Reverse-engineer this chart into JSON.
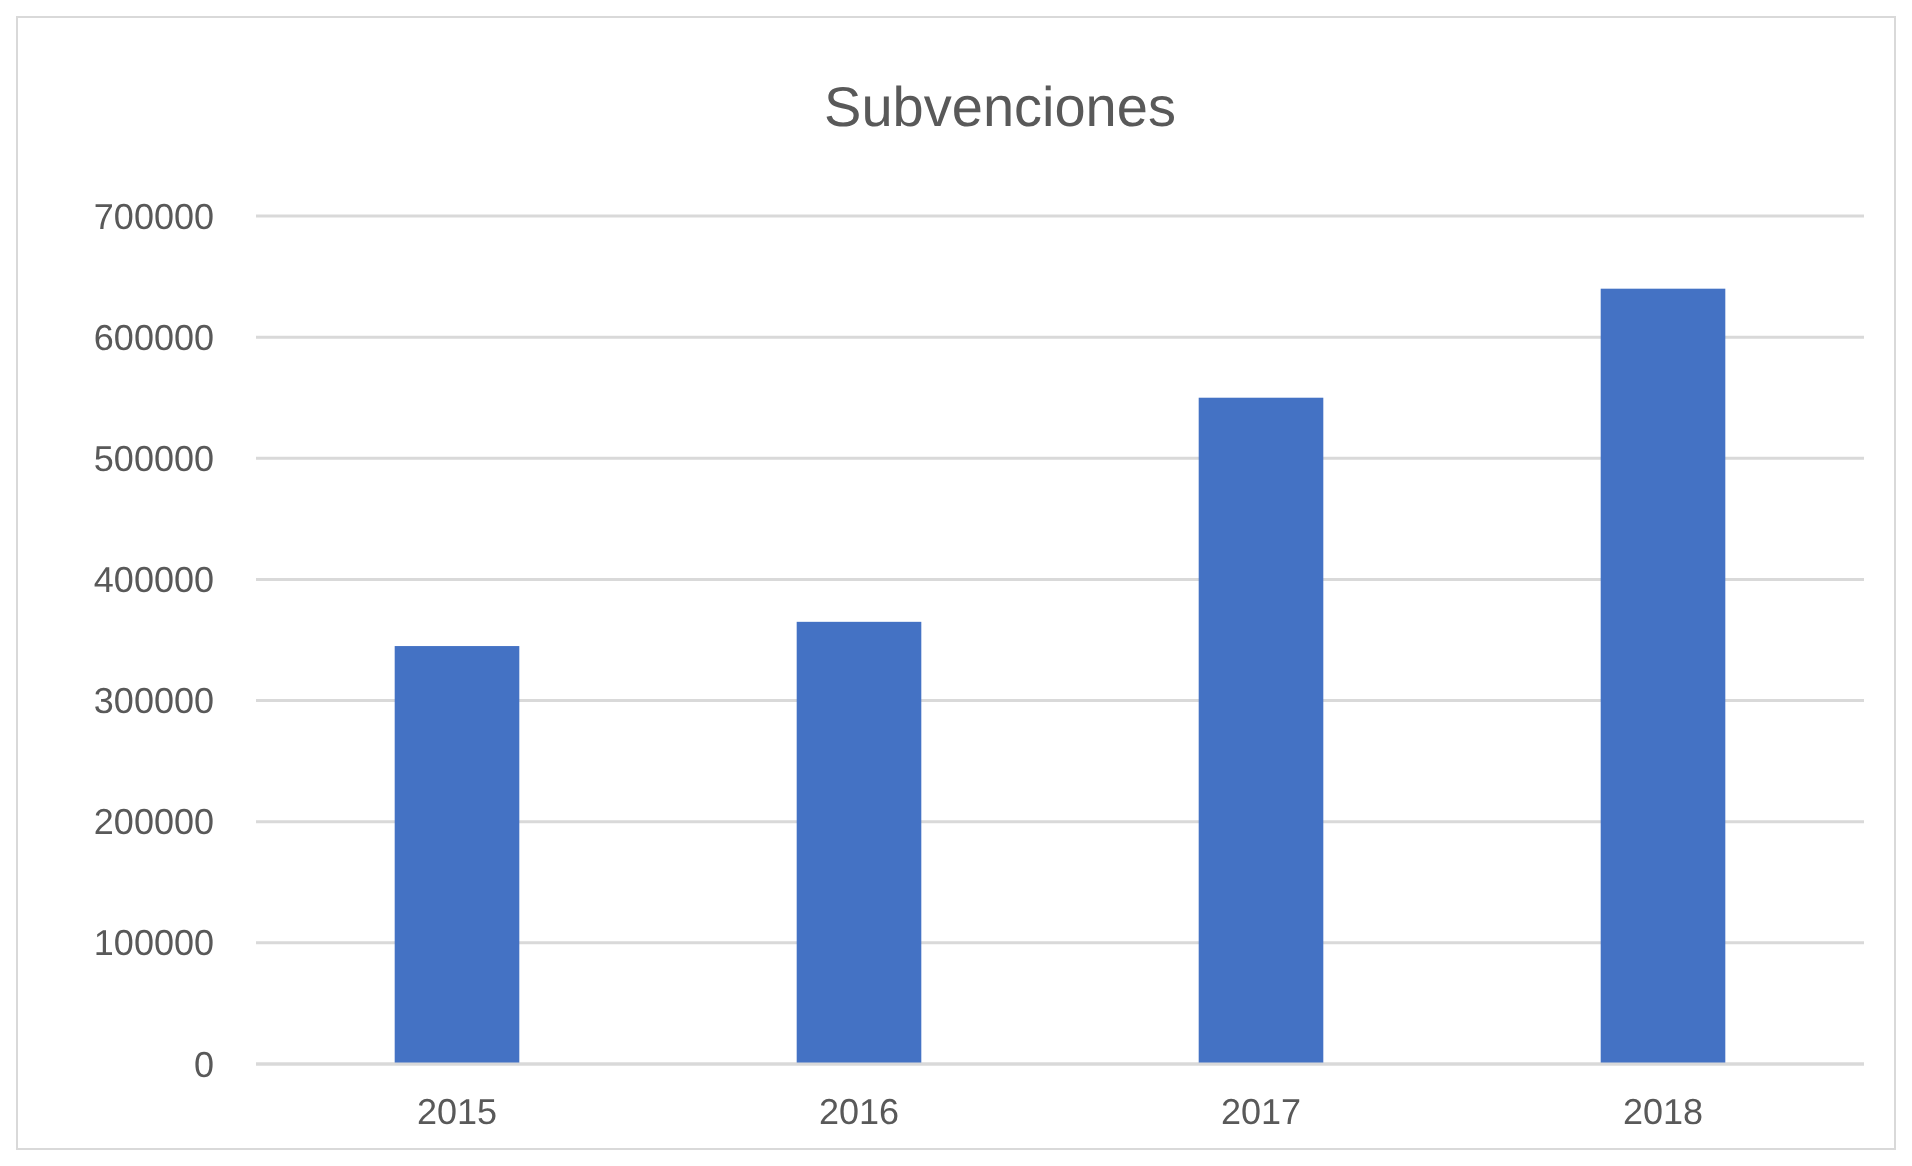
{
  "chart_data": {
    "type": "bar",
    "title": "Subvenciones",
    "categories": [
      "2015",
      "2016",
      "2017",
      "2018"
    ],
    "values": [
      345000,
      365000,
      550000,
      640000
    ],
    "color": "#4472c4",
    "ylim": [
      0,
      700000
    ],
    "yticks": [
      0,
      100000,
      200000,
      300000,
      400000,
      500000,
      600000,
      700000
    ],
    "grid": "y"
  }
}
